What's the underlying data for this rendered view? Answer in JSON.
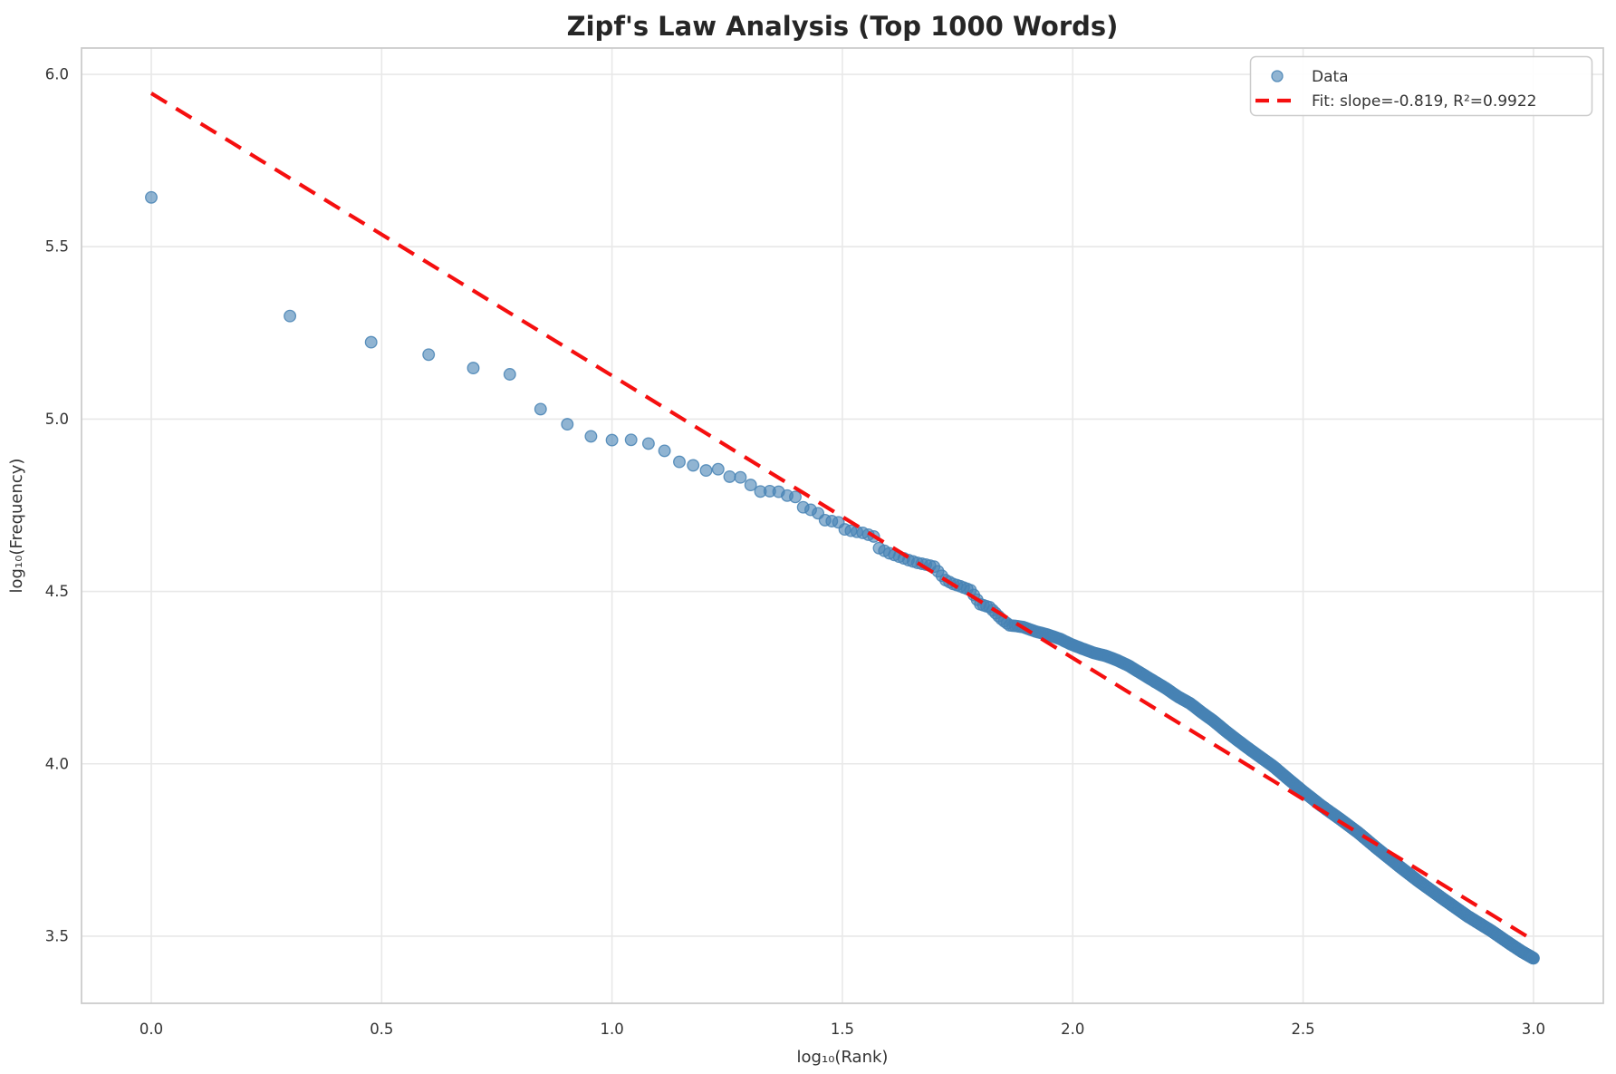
{
  "figure": {
    "title": "Zipf's Law Analysis (Top 1000 Words)"
  },
  "chart_data": {
    "type": "scatter",
    "title": "Zipf's Law Analysis (Top 1000 Words)",
    "xlabel": "log₁₀(Rank)",
    "ylabel": "log₁₀(Frequency)",
    "xlim": [
      -0.1514,
      3.1516
    ],
    "ylim": [
      3.3053,
      6.0763
    ],
    "x_ticks": [
      0.0,
      0.5,
      1.0,
      1.5,
      2.0,
      2.5,
      3.0
    ],
    "x_tick_labels": [
      "0.0",
      "0.5",
      "1.0",
      "1.5",
      "2.0",
      "2.5",
      "3.0"
    ],
    "y_ticks": [
      3.5,
      4.0,
      4.5,
      5.0,
      5.5,
      6.0
    ],
    "y_tick_labels": [
      "3.5",
      "4.0",
      "4.5",
      "5.0",
      "5.5",
      "6.0"
    ],
    "grid": true,
    "legend": {
      "position": "upper right",
      "entries": [
        {
          "label": "Data",
          "type": "marker"
        },
        {
          "label": "Fit: slope=-0.819, R²=0.9922",
          "type": "dashed-line"
        }
      ]
    },
    "series": [
      {
        "name": "Data",
        "type": "scatter",
        "n_points": 1000,
        "marker": {
          "fill": "rgba(70,130,180,0.6)",
          "edge": "rgba(70,130,180,0.85)",
          "radius": 6.3,
          "edge_width": 1.3
        },
        "anchor_points": [
          [
            0.0,
            5.643
          ],
          [
            0.301,
            5.299
          ],
          [
            0.477,
            5.223
          ],
          [
            0.602,
            5.187
          ],
          [
            0.699,
            5.148
          ],
          [
            0.778,
            5.13
          ],
          [
            0.845,
            5.029
          ],
          [
            0.903,
            4.985
          ],
          [
            0.954,
            4.95
          ],
          [
            1.0,
            4.939
          ],
          [
            1.041,
            4.94
          ],
          [
            1.079,
            4.929
          ],
          [
            1.114,
            4.908
          ],
          [
            1.146,
            4.876
          ],
          [
            1.176,
            4.866
          ],
          [
            1.204,
            4.851
          ],
          [
            1.23,
            4.855
          ],
          [
            1.255,
            4.833
          ],
          [
            1.279,
            4.831
          ],
          [
            1.301,
            4.809
          ],
          [
            1.322,
            4.79
          ],
          [
            1.342,
            4.791
          ],
          [
            1.362,
            4.789
          ],
          [
            1.38,
            4.778
          ],
          [
            1.398,
            4.774
          ],
          [
            1.415,
            4.744
          ],
          [
            1.431,
            4.737
          ],
          [
            1.447,
            4.727
          ],
          [
            1.462,
            4.707
          ],
          [
            1.477,
            4.704
          ],
          [
            1.491,
            4.701
          ],
          [
            1.505,
            4.68
          ],
          [
            1.519,
            4.676
          ],
          [
            1.544,
            4.67
          ],
          [
            1.568,
            4.66
          ],
          [
            1.58,
            4.625
          ],
          [
            1.602,
            4.611
          ],
          [
            1.623,
            4.601
          ],
          [
            1.643,
            4.591
          ],
          [
            1.663,
            4.583
          ],
          [
            1.681,
            4.578
          ],
          [
            1.699,
            4.572
          ],
          [
            1.724,
            4.533
          ],
          [
            1.74,
            4.522
          ],
          [
            1.756,
            4.515
          ],
          [
            1.778,
            4.504
          ],
          [
            1.799,
            4.463
          ],
          [
            1.82,
            4.454
          ],
          [
            1.845,
            4.42
          ],
          [
            1.863,
            4.402
          ],
          [
            1.892,
            4.397
          ],
          [
            1.919,
            4.384
          ],
          [
            1.945,
            4.375
          ],
          [
            1.973,
            4.362
          ],
          [
            1.996,
            4.347
          ],
          [
            2.021,
            4.334
          ],
          [
            2.045,
            4.322
          ],
          [
            2.072,
            4.313
          ],
          [
            2.097,
            4.3
          ],
          [
            2.121,
            4.285
          ],
          [
            2.149,
            4.262
          ],
          [
            2.176,
            4.24
          ],
          [
            2.201,
            4.22
          ],
          [
            2.228,
            4.195
          ],
          [
            2.255,
            4.175
          ],
          [
            2.281,
            4.148
          ],
          [
            2.305,
            4.125
          ],
          [
            2.332,
            4.095
          ],
          [
            2.358,
            4.068
          ],
          [
            2.386,
            4.04
          ],
          [
            2.412,
            4.015
          ],
          [
            2.436,
            3.992
          ],
          [
            2.464,
            3.96
          ],
          [
            2.5,
            3.92
          ],
          [
            2.54,
            3.878
          ],
          [
            2.582,
            3.838
          ],
          [
            2.62,
            3.8
          ],
          [
            2.66,
            3.755
          ],
          [
            2.713,
            3.698
          ],
          [
            2.752,
            3.658
          ],
          [
            2.804,
            3.608
          ],
          [
            2.857,
            3.558
          ],
          [
            2.909,
            3.515
          ],
          [
            2.949,
            3.478
          ],
          [
            2.975,
            3.455
          ],
          [
            3.0,
            3.436
          ]
        ]
      },
      {
        "name": "Fit",
        "type": "line",
        "slope": -0.819,
        "intercept": 5.945,
        "r_squared": 0.9922,
        "x_range": [
          0.0,
          3.0
        ],
        "style": {
          "color": "#f50f0f",
          "dash": [
            20,
            12
          ],
          "width": 4.2
        }
      }
    ],
    "style": {
      "grid_color": "#e8e8e8",
      "frame_color": "#cccccc",
      "background": "#ffffff"
    }
  }
}
